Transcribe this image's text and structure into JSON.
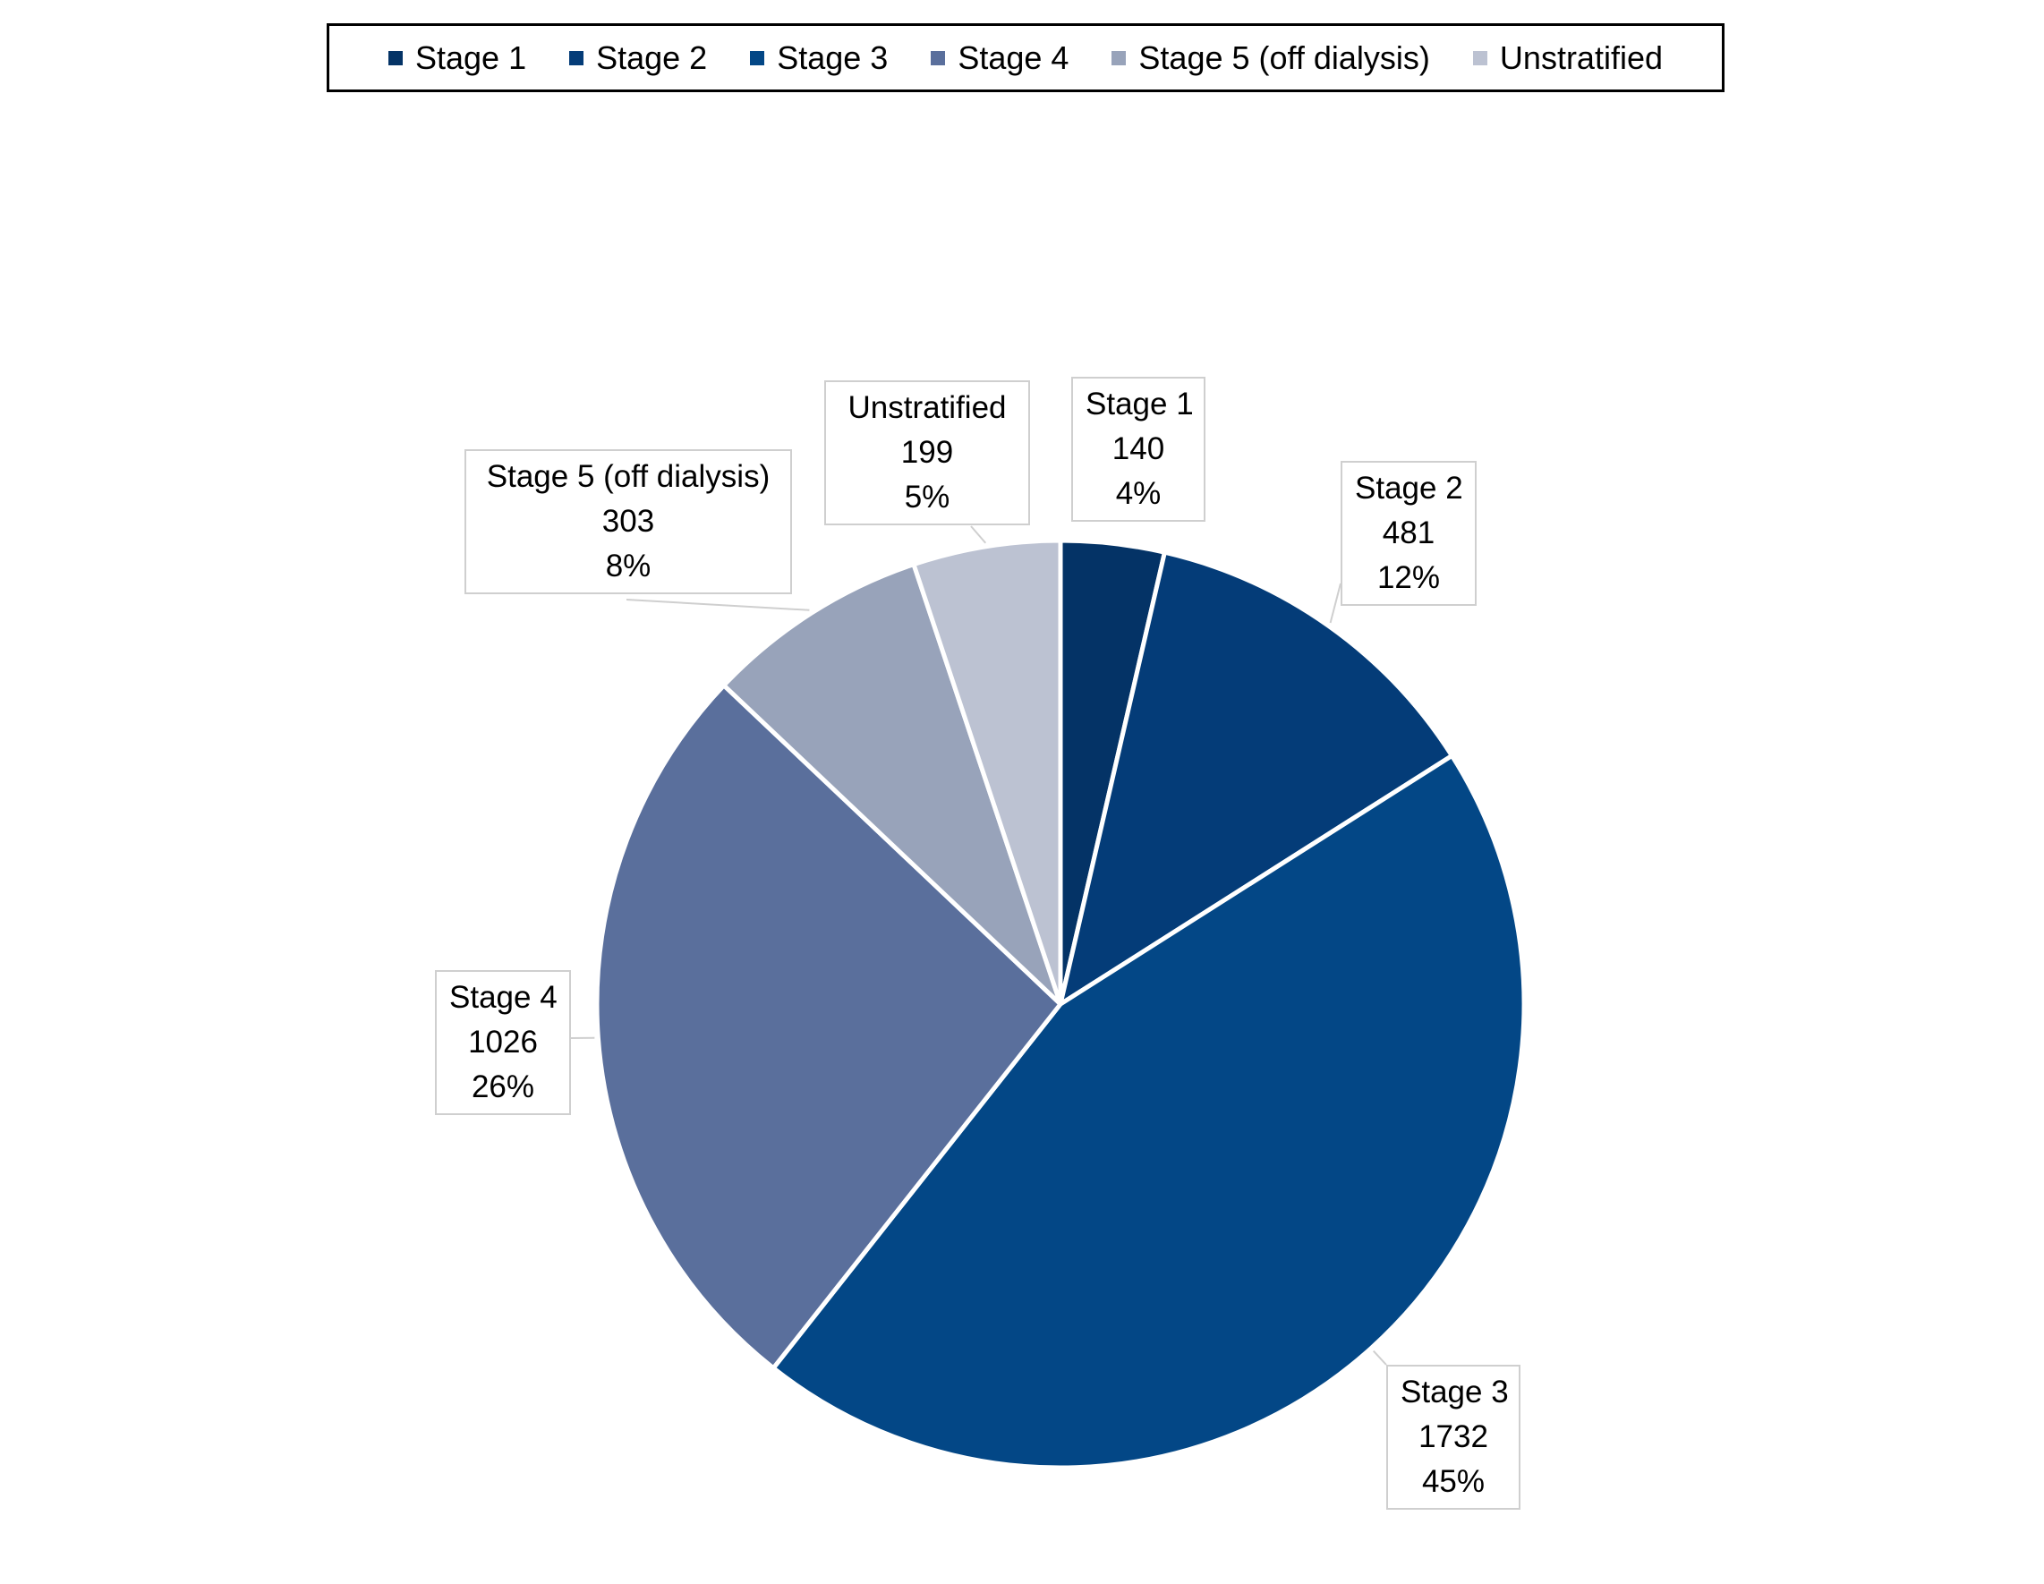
{
  "chart_data": {
    "type": "pie",
    "title": "",
    "categories": [
      "Stage 1",
      "Stage 2",
      "Stage 3",
      "Stage 4",
      "Stage 5 (off dialysis)",
      "Unstratified"
    ],
    "values": [
      140,
      481,
      1732,
      1026,
      303,
      199
    ],
    "percent_labels": [
      "4%",
      "12%",
      "45%",
      "26%",
      "8%",
      "5%"
    ],
    "value_labels": [
      "140",
      "481",
      "1732",
      "1026",
      "303",
      "199"
    ],
    "colors": [
      "#043366",
      "#043c78",
      "#034786",
      "#5a6f9c",
      "#98a3ba",
      "#bcc2d2"
    ],
    "legend": {
      "position": "top"
    },
    "start_angle_deg": 0,
    "direction": "clockwise"
  }
}
